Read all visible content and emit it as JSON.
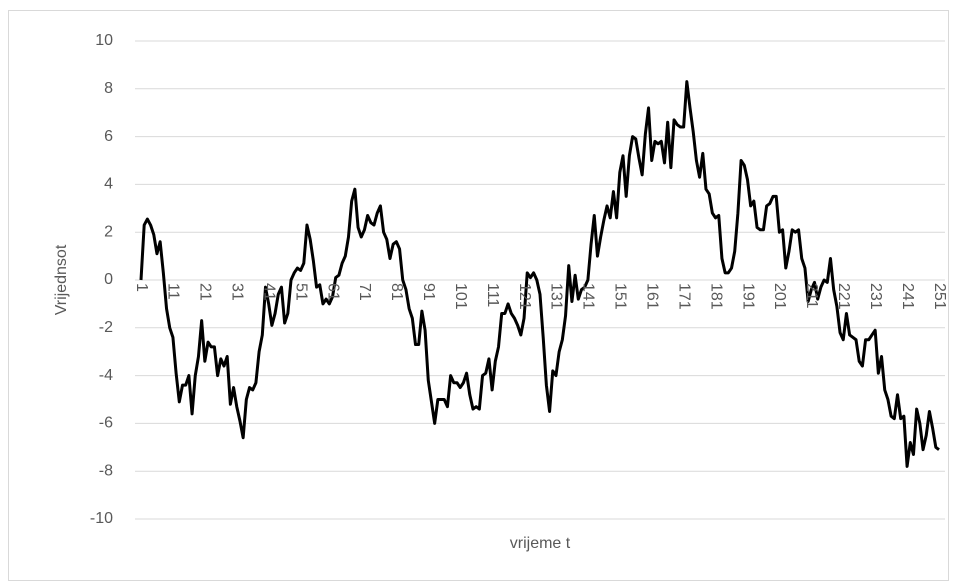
{
  "chart_data": {
    "type": "line",
    "x_label": "vrijeme t",
    "y_label": "Vrijednsot",
    "categories": [
      1,
      null,
      null,
      null,
      null,
      null,
      null,
      null,
      null,
      null,
      11,
      null,
      null,
      null,
      null,
      null,
      null,
      null,
      null,
      null,
      21,
      null,
      null,
      null,
      null,
      null,
      null,
      null,
      null,
      null,
      31,
      null,
      null,
      null,
      null,
      null,
      null,
      null,
      null,
      null,
      41,
      null,
      null,
      null,
      null,
      null,
      null,
      null,
      null,
      null,
      51,
      null,
      null,
      null,
      null,
      null,
      null,
      null,
      null,
      null,
      61,
      null,
      null,
      null,
      null,
      null,
      null,
      null,
      null,
      null,
      71,
      null,
      null,
      null,
      null,
      null,
      null,
      null,
      null,
      null,
      81,
      null,
      null,
      null,
      null,
      null,
      null,
      null,
      null,
      null,
      91,
      null,
      null,
      null,
      null,
      null,
      null,
      null,
      null,
      null,
      101,
      null,
      null,
      null,
      null,
      null,
      null,
      null,
      null,
      null,
      111,
      null,
      null,
      null,
      null,
      null,
      null,
      null,
      null,
      null,
      121,
      null,
      null,
      null,
      null,
      null,
      null,
      null,
      null,
      null,
      131,
      null,
      null,
      null,
      null,
      null,
      null,
      null,
      null,
      null,
      141,
      null,
      null,
      null,
      null,
      null,
      null,
      null,
      null,
      null,
      151,
      null,
      null,
      null,
      null,
      null,
      null,
      null,
      null,
      null,
      161,
      null,
      null,
      null,
      null,
      null,
      null,
      null,
      null,
      null,
      171,
      null,
      null,
      null,
      null,
      null,
      null,
      null,
      null,
      null,
      181,
      null,
      null,
      null,
      null,
      null,
      null,
      null,
      null,
      null,
      191,
      null,
      null,
      null,
      null,
      null,
      null,
      null,
      null,
      null,
      201,
      null,
      null,
      null,
      null,
      null,
      null,
      null,
      null,
      null,
      211,
      null,
      null,
      null,
      null,
      null,
      null,
      null,
      null,
      null,
      221,
      null,
      null,
      null,
      null,
      null,
      null,
      null,
      null,
      null,
      231,
      null,
      null,
      null,
      null,
      null,
      null,
      null,
      null,
      null,
      241,
      null,
      null,
      null,
      null,
      null,
      null,
      null,
      null,
      null,
      251
    ],
    "series": [
      {
        "color": "#000000",
        "values": [
          0,
          2.3,
          2.55,
          2.3,
          1.9,
          1.1,
          1.6,
          0.3,
          -1.2,
          -2.0,
          -2.4,
          -3.9,
          -5.1,
          -4.4,
          -4.4,
          -4.0,
          -5.6,
          -4.0,
          -3.2,
          -1.7,
          -3.4,
          -2.6,
          -2.8,
          -2.8,
          -4.0,
          -3.3,
          -3.6,
          -3.2,
          -5.2,
          -4.5,
          -5.3,
          -5.9,
          -6.6,
          -5.0,
          -4.5,
          -4.6,
          -4.3,
          -3.0,
          -2.3,
          -0.3,
          -1.0,
          -1.9,
          -1.4,
          -0.6,
          -0.3,
          -1.8,
          -1.4,
          0.0,
          0.3,
          0.5,
          0.4,
          0.7,
          2.3,
          1.7,
          0.8,
          -0.3,
          -0.2,
          -1.0,
          -0.8,
          -1.0,
          -0.7,
          0.1,
          0.2,
          0.7,
          1.0,
          1.8,
          3.3,
          3.8,
          2.2,
          1.8,
          2.1,
          2.7,
          2.4,
          2.3,
          2.8,
          3.1,
          2.0,
          1.7,
          0.9,
          1.5,
          1.6,
          1.3,
          0.0,
          -0.4,
          -1.2,
          -1.6,
          -2.7,
          -2.7,
          -1.3,
          -2.1,
          -4.2,
          -5.1,
          -6.0,
          -5.0,
          -5.0,
          -5.0,
          -5.3,
          -4.0,
          -4.3,
          -4.3,
          -4.5,
          -4.3,
          -3.9,
          -4.8,
          -5.4,
          -5.3,
          -5.4,
          -4.0,
          -3.9,
          -3.3,
          -4.6,
          -3.4,
          -2.8,
          -1.4,
          -1.4,
          -1.0,
          -1.4,
          -1.6,
          -1.9,
          -2.3,
          -1.6,
          0.3,
          0.1,
          0.3,
          0.0,
          -0.6,
          -2.4,
          -4.4,
          -5.5,
          -3.8,
          -4.0,
          -3.0,
          -2.5,
          -1.5,
          0.6,
          -0.9,
          0.2,
          -0.8,
          -0.4,
          -0.3,
          0.0,
          1.5,
          2.7,
          1.0,
          1.8,
          2.5,
          3.1,
          2.6,
          3.7,
          2.6,
          4.5,
          5.2,
          3.5,
          5.2,
          6.0,
          5.9,
          5.1,
          4.4,
          6.1,
          7.2,
          5.0,
          5.8,
          5.7,
          5.8,
          4.9,
          6.6,
          4.7,
          6.7,
          6.5,
          6.4,
          6.4,
          8.3,
          7.2,
          6.2,
          5.0,
          4.3,
          5.3,
          3.8,
          3.6,
          2.8,
          2.6,
          2.7,
          0.9,
          0.3,
          0.3,
          0.5,
          1.2,
          2.8,
          5.0,
          4.8,
          4.2,
          3.1,
          3.3,
          2.2,
          2.1,
          2.1,
          3.1,
          3.2,
          3.5,
          3.5,
          2.0,
          2.1,
          0.5,
          1.2,
          2.1,
          2.0,
          2.1,
          0.9,
          0.5,
          -0.9,
          -0.4,
          -0.1,
          -0.8,
          -0.3,
          0.0,
          -0.1,
          0.9,
          -0.4,
          -1.1,
          -2.2,
          -2.5,
          -1.4,
          -2.3,
          -2.4,
          -2.5,
          -3.4,
          -3.6,
          -2.5,
          -2.5,
          -2.3,
          -2.1,
          -3.9,
          -3.2,
          -4.6,
          -5.0,
          -5.7,
          -5.8,
          -4.8,
          -5.8,
          -5.7,
          -7.8,
          -6.8,
          -7.3,
          -5.4,
          -6.0,
          -7.1,
          -6.5,
          -5.5,
          -6.2,
          -7.0,
          -7.1
        ]
      }
    ],
    "ylim": [
      -10,
      10
    ],
    "yticks": [
      -10,
      -8,
      -6,
      -4,
      -2,
      0,
      2,
      4,
      6,
      8,
      10
    ],
    "grid": true
  }
}
